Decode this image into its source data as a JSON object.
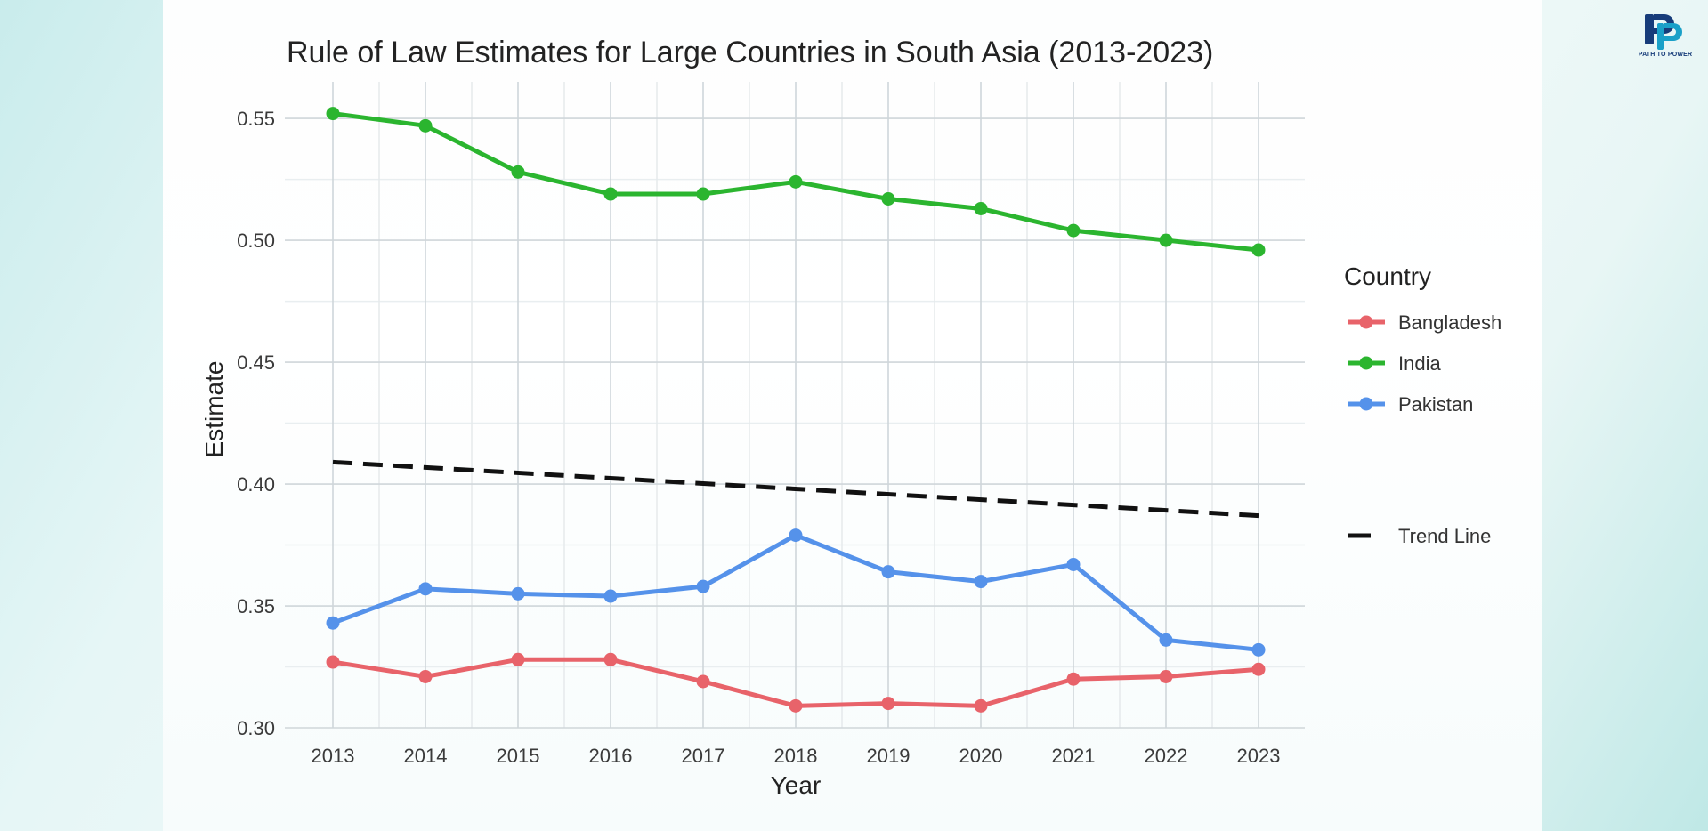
{
  "brand": {
    "logo_text": "PATH TO POWER",
    "colors": {
      "primary": "#173c7a",
      "accent": "#1aa0c8"
    }
  },
  "chart_data": {
    "type": "line",
    "title": "Rule of Law Estimates for Large Countries in South Asia (2013-2023)",
    "xlabel": "Year",
    "ylabel": "Estimate",
    "x": [
      2013,
      2014,
      2015,
      2016,
      2017,
      2018,
      2019,
      2020,
      2021,
      2022,
      2023
    ],
    "ylim": [
      0.3,
      0.565
    ],
    "yticks": [
      0.3,
      0.35,
      0.4,
      0.45,
      0.5,
      0.55
    ],
    "ytick_labels": [
      "0.30",
      "0.35",
      "0.40",
      "0.45",
      "0.50",
      "0.55"
    ],
    "grid": true,
    "legend": {
      "title": "Country",
      "position": "right"
    },
    "series": [
      {
        "name": "Bangladesh",
        "color": "#e8636a",
        "values": [
          0.327,
          0.321,
          0.328,
          0.328,
          0.319,
          0.309,
          0.31,
          0.309,
          0.32,
          0.321,
          0.324
        ]
      },
      {
        "name": "India",
        "color": "#2bb52f",
        "values": [
          0.552,
          0.547,
          0.528,
          0.519,
          0.519,
          0.524,
          0.517,
          0.513,
          0.504,
          0.5,
          0.496
        ]
      },
      {
        "name": "Pakistan",
        "color": "#5592ea",
        "values": [
          0.343,
          0.357,
          0.355,
          0.354,
          0.358,
          0.379,
          0.364,
          0.36,
          0.367,
          0.336,
          0.332
        ]
      }
    ],
    "trend_line": {
      "name": "Trend Line",
      "color": "#111111",
      "start": 0.409,
      "end": 0.387
    }
  }
}
